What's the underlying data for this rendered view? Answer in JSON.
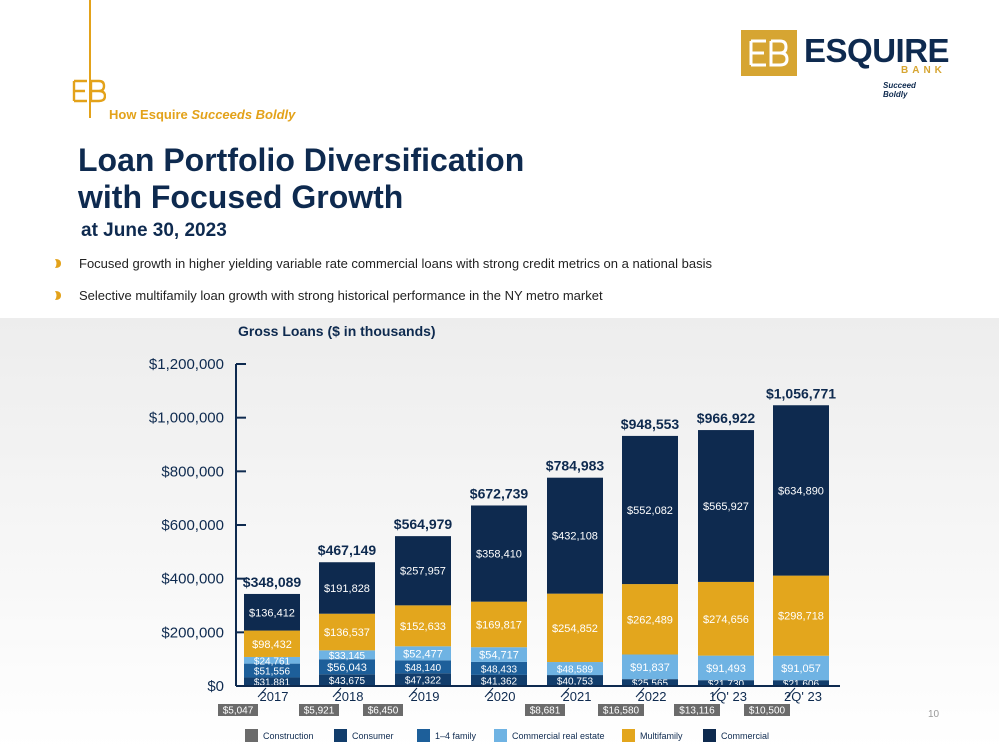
{
  "header": {
    "tagline_prefix": "How Esquire ",
    "tagline_emphasis": "Succeeds Boldly"
  },
  "logo": {
    "word": "ESQUIRE",
    "bank": "BANK",
    "tag": "Succeed Boldly"
  },
  "title_line1": "Loan Portfolio Diversification",
  "title_line2": "with Focused Growth",
  "subtitle": "at June 30, 2023",
  "bullets": [
    "Focused growth in higher yielding variable rate commercial loans with strong credit metrics on a national basis",
    "Selective multifamily loan growth with strong historical performance in the NY metro market"
  ],
  "page_number": "10",
  "colors": {
    "navy": "#0e2a4f",
    "gold": "#e3a21a",
    "construction": "#6b6b6b",
    "consumer": "#123d6b",
    "one_to_four_family": "#1d5f9a",
    "commercial_real_estate": "#6fb3e3",
    "multifamily": "#e3a61d",
    "commercial": "#0e2a4f"
  },
  "chart_data": {
    "type": "bar",
    "stacked": true,
    "title": "Gross Loans ($ in thousands)",
    "categories": [
      "2017",
      "2018",
      "2019",
      "2020",
      "2021",
      "2022",
      "1Q' 23",
      "2Q' 23"
    ],
    "ylim": [
      0,
      1200000
    ],
    "yticks": [
      "$0",
      "$200,000",
      "$400,000",
      "$600,000",
      "$800,000",
      "$1,000,000",
      "$1,200,000"
    ],
    "totals": [
      "$348,089",
      "$467,149",
      "$564,979",
      "$672,739",
      "$784,983",
      "$948,553",
      "$966,922",
      "$1,056,771"
    ],
    "legend_position": "bottom",
    "series": [
      {
        "name": "Construction",
        "color": "#6b6b6b",
        "values": [
          5047,
          5921,
          6450,
          0,
          8681,
          16580,
          13116,
          10500
        ],
        "labels": [
          "$5,047",
          "$5,921",
          "$6,450",
          "",
          "$8,681",
          "$16,580",
          "$13,116",
          "$10,500"
        ]
      },
      {
        "name": "Consumer",
        "color": "#123d6b",
        "values": [
          31881,
          43675,
          47322,
          41362,
          40753,
          25565,
          21730,
          21606
        ],
        "labels": [
          "$31,881",
          "$43,675",
          "$47,322",
          "$41,362",
          "$40,753",
          "$25,565",
          "$21,730",
          "$21,606"
        ]
      },
      {
        "name": "1–4 family",
        "color": "#1d5f9a",
        "values": [
          51556,
          56043,
          48140,
          48433,
          0,
          0,
          0,
          0
        ],
        "labels": [
          "$51,556",
          "$56,043",
          "$48,140",
          "$48,433",
          "",
          "",
          "",
          ""
        ]
      },
      {
        "name": "Commercial real estate",
        "color": "#6fb3e3",
        "values": [
          24761,
          33145,
          52477,
          54717,
          48589,
          91837,
          91493,
          91057
        ],
        "labels": [
          "$24,761",
          "$33,145",
          "$52,477",
          "$54,717",
          "$48,589",
          "$91,837",
          "$91,493",
          "$91,057"
        ]
      },
      {
        "name": "Multifamily",
        "color": "#e3a61d",
        "values": [
          98432,
          136537,
          152633,
          169817,
          254852,
          262489,
          274656,
          298718
        ],
        "labels": [
          "$98,432",
          "$136,537",
          "$152,633",
          "$169,817",
          "$254,852",
          "$262,489",
          "$274,656",
          "$298,718"
        ]
      },
      {
        "name": "Commercial",
        "color": "#0e2a4f",
        "values": [
          136412,
          191828,
          257957,
          358410,
          432108,
          552082,
          565927,
          634890
        ],
        "labels": [
          "$136,412",
          "$191,828",
          "$257,957",
          "$358,410",
          "$432,108",
          "$552,082",
          "$565,927",
          "$634,890"
        ]
      }
    ]
  }
}
